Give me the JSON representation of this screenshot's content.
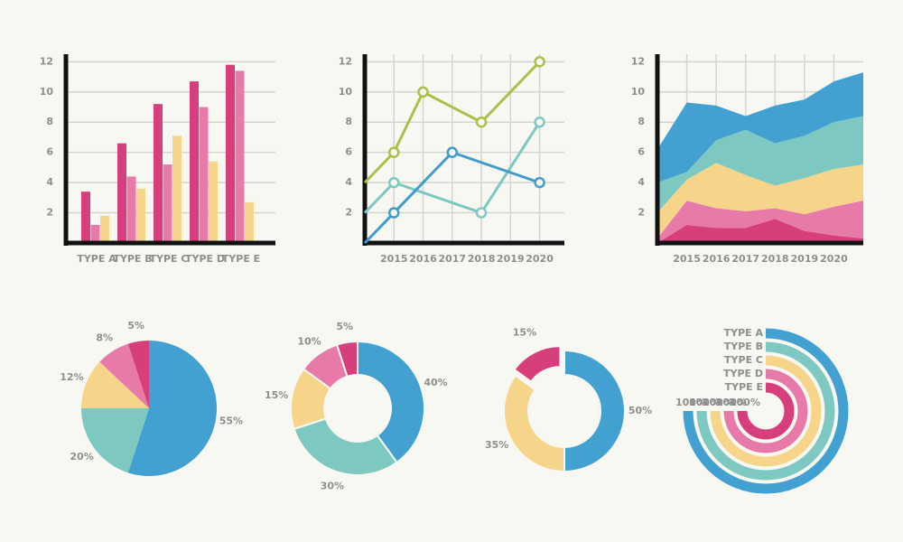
{
  "chart_data": [
    {
      "type": "bar",
      "categories": [
        "TYPE A",
        "TYPE B",
        "TYPE C",
        "TYPE D",
        "TYPE E"
      ],
      "series": [
        {
          "color": "#d63f7b",
          "values": [
            3.4,
            6.6,
            9.2,
            10.7,
            11.8
          ]
        },
        {
          "color": "#e87aa9",
          "values": [
            1.2,
            4.4,
            5.2,
            9.0,
            11.4
          ]
        },
        {
          "color": "#f6d48a",
          "values": [
            1.8,
            3.6,
            7.1,
            5.4,
            2.7
          ]
        }
      ],
      "ylim": [
        0,
        12.5
      ],
      "yticks": [
        2,
        4,
        6,
        8,
        10,
        12
      ],
      "grid": true
    },
    {
      "type": "line",
      "series": [
        {
          "color": "#a9c04a",
          "x": [
            2014,
            2015,
            2016,
            2018,
            2020
          ],
          "values": [
            4,
            6,
            10,
            8,
            12
          ]
        },
        {
          "color": "#7ec8c2",
          "x": [
            2014,
            2015,
            2018,
            2020
          ],
          "values": [
            2,
            4,
            2,
            8
          ]
        },
        {
          "color": "#3f9ccc",
          "x": [
            2014,
            2015,
            2017,
            2020
          ],
          "values": [
            0,
            2,
            6,
            4
          ]
        }
      ],
      "xlim": [
        2014,
        2020.85
      ],
      "xticks": [
        2015,
        2016,
        2017,
        2018,
        2019,
        2020
      ],
      "ylim": [
        0,
        12.5
      ],
      "yticks": [
        2,
        4,
        6,
        8,
        10,
        12
      ],
      "grid": true
    },
    {
      "type": "area",
      "x": [
        2014,
        2015,
        2016,
        2017,
        2018,
        2019,
        2020,
        2021
      ],
      "series": [
        {
          "color": "#d63f7b",
          "values": [
            0,
            1.2,
            1.0,
            1.0,
            1.6,
            0.8,
            0.5,
            0.3
          ]
        },
        {
          "color": "#e87aa9",
          "values": [
            0.3,
            1.6,
            1.3,
            1.1,
            0.7,
            1.1,
            1.9,
            2.5
          ]
        },
        {
          "color": "#f6d48a",
          "values": [
            1.7,
            1.4,
            3.0,
            2.4,
            1.5,
            2.4,
            2.5,
            2.4
          ]
        },
        {
          "color": "#7ec8c2",
          "values": [
            2.0,
            0.5,
            1.5,
            3.0,
            2.8,
            2.8,
            3.1,
            3.2
          ]
        },
        {
          "color": "#42a1d1",
          "values": [
            2.2,
            4.6,
            2.3,
            0.9,
            2.5,
            2.4,
            2.7,
            2.9
          ]
        }
      ],
      "xlim": [
        2014,
        2021
      ],
      "xticks": [
        2015,
        2016,
        2017,
        2018,
        2019,
        2020
      ],
      "ylim": [
        0,
        12.5
      ],
      "yticks": [
        2,
        4,
        6,
        8,
        10,
        12
      ],
      "grid": true
    },
    {
      "type": "pie",
      "values": [
        55,
        20,
        12,
        8,
        5
      ],
      "value_labels": [
        "55%",
        "20%",
        "12%",
        "8%",
        "5%"
      ],
      "colors": [
        "#42a1d1",
        "#7ec8c2",
        "#f6d48a",
        "#e87aa9",
        "#d63f7b"
      ]
    },
    {
      "type": "donut",
      "values": [
        40,
        30,
        15,
        10,
        5
      ],
      "value_labels": [
        "40%",
        "30%",
        "15%",
        "10%",
        "5%"
      ],
      "colors": [
        "#42a1d1",
        "#7ec8c2",
        "#f6d48a",
        "#e87aa9",
        "#d63f7b"
      ]
    },
    {
      "type": "donut",
      "values": [
        50,
        35,
        15
      ],
      "value_labels": [
        "50%",
        "35%",
        "15%"
      ],
      "colors": [
        "#42a1d1",
        "#f6d48a",
        "#d63f7b"
      ],
      "explode": [
        false,
        false,
        true
      ]
    },
    {
      "type": "radial_bar",
      "categories": [
        "TYPE A",
        "TYPE B",
        "TYPE C",
        "TYPE D",
        "TYPE E"
      ],
      "values": [
        100,
        100,
        100,
        100,
        100
      ],
      "value_labels": [
        "100%",
        "100%",
        "100%",
        "100%",
        "100%"
      ],
      "colors": [
        "#42a1d1",
        "#7ec8c2",
        "#f6d48a",
        "#e87aa9",
        "#d63f7b"
      ]
    }
  ]
}
